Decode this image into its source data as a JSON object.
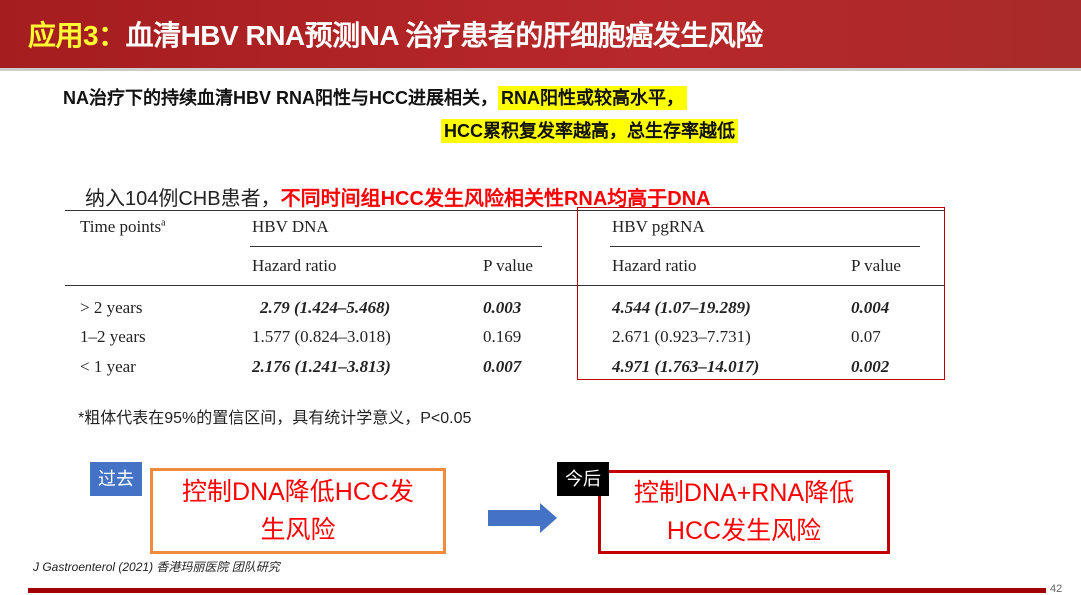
{
  "header": {
    "prefix": "应用3：",
    "title": "血清HBV RNA预测NA 治疗患者的肝细胞癌发生风险"
  },
  "summary": {
    "line1_plain": "NA治疗下的持续血清HBV RNA阳性与HCC进展相关，",
    "line1_hl": "RNA阳性或较高水平，",
    "line2_hl": "HCC累积复发率越高，总生存率越低"
  },
  "subtitle": {
    "plain": "纳入104例CHB患者，",
    "red": "不同时间组HCC发生风险相关性RNA均高于DNA"
  },
  "table": {
    "col_time": "Time points",
    "col_time_sup": "a",
    "group_dna": "HBV DNA",
    "group_rna": "HBV pgRNA",
    "hr": "Hazard ratio",
    "p": "P value",
    "rows": [
      {
        "time": "> 2 years",
        "dna_hr": "2.79 (1.424–5.468)",
        "dna_p": "0.003",
        "rna_hr": "4.544 (1.07–19.289)",
        "rna_p": "0.004",
        "dna_bold": true,
        "rna_bold": true
      },
      {
        "time": "1–2 years",
        "dna_hr": "1.577 (0.824–3.018)",
        "dna_p": "0.169",
        "rna_hr": "2.671 (0.923–7.731)",
        "rna_p": "0.07",
        "dna_bold": false,
        "rna_bold": false
      },
      {
        "time": "< 1 year",
        "dna_hr": "2.176 (1.241–3.813)",
        "dna_p": "0.007",
        "rna_hr": "4.971 (1.763–14.017)",
        "rna_p": "0.002",
        "dna_bold": true,
        "rna_bold": true
      }
    ]
  },
  "note": "*粗体代表在95%的置信区间，具有统计学意义，P<0.05",
  "past": {
    "tag": "过去",
    "text": "控制DNA降低HCC发生风险"
  },
  "future": {
    "tag": "今后",
    "text": "控制DNA+RNA降低HCC发生风险"
  },
  "citation": "J Gastroenterol (2021) 香港玛丽医院 团队研究",
  "page_number": "42",
  "colors": {
    "header": "#a51d1f",
    "highlight": "#ffff00",
    "red": "#ff0000",
    "past_tag": "#4472c4",
    "arrow": "#4472c4"
  }
}
